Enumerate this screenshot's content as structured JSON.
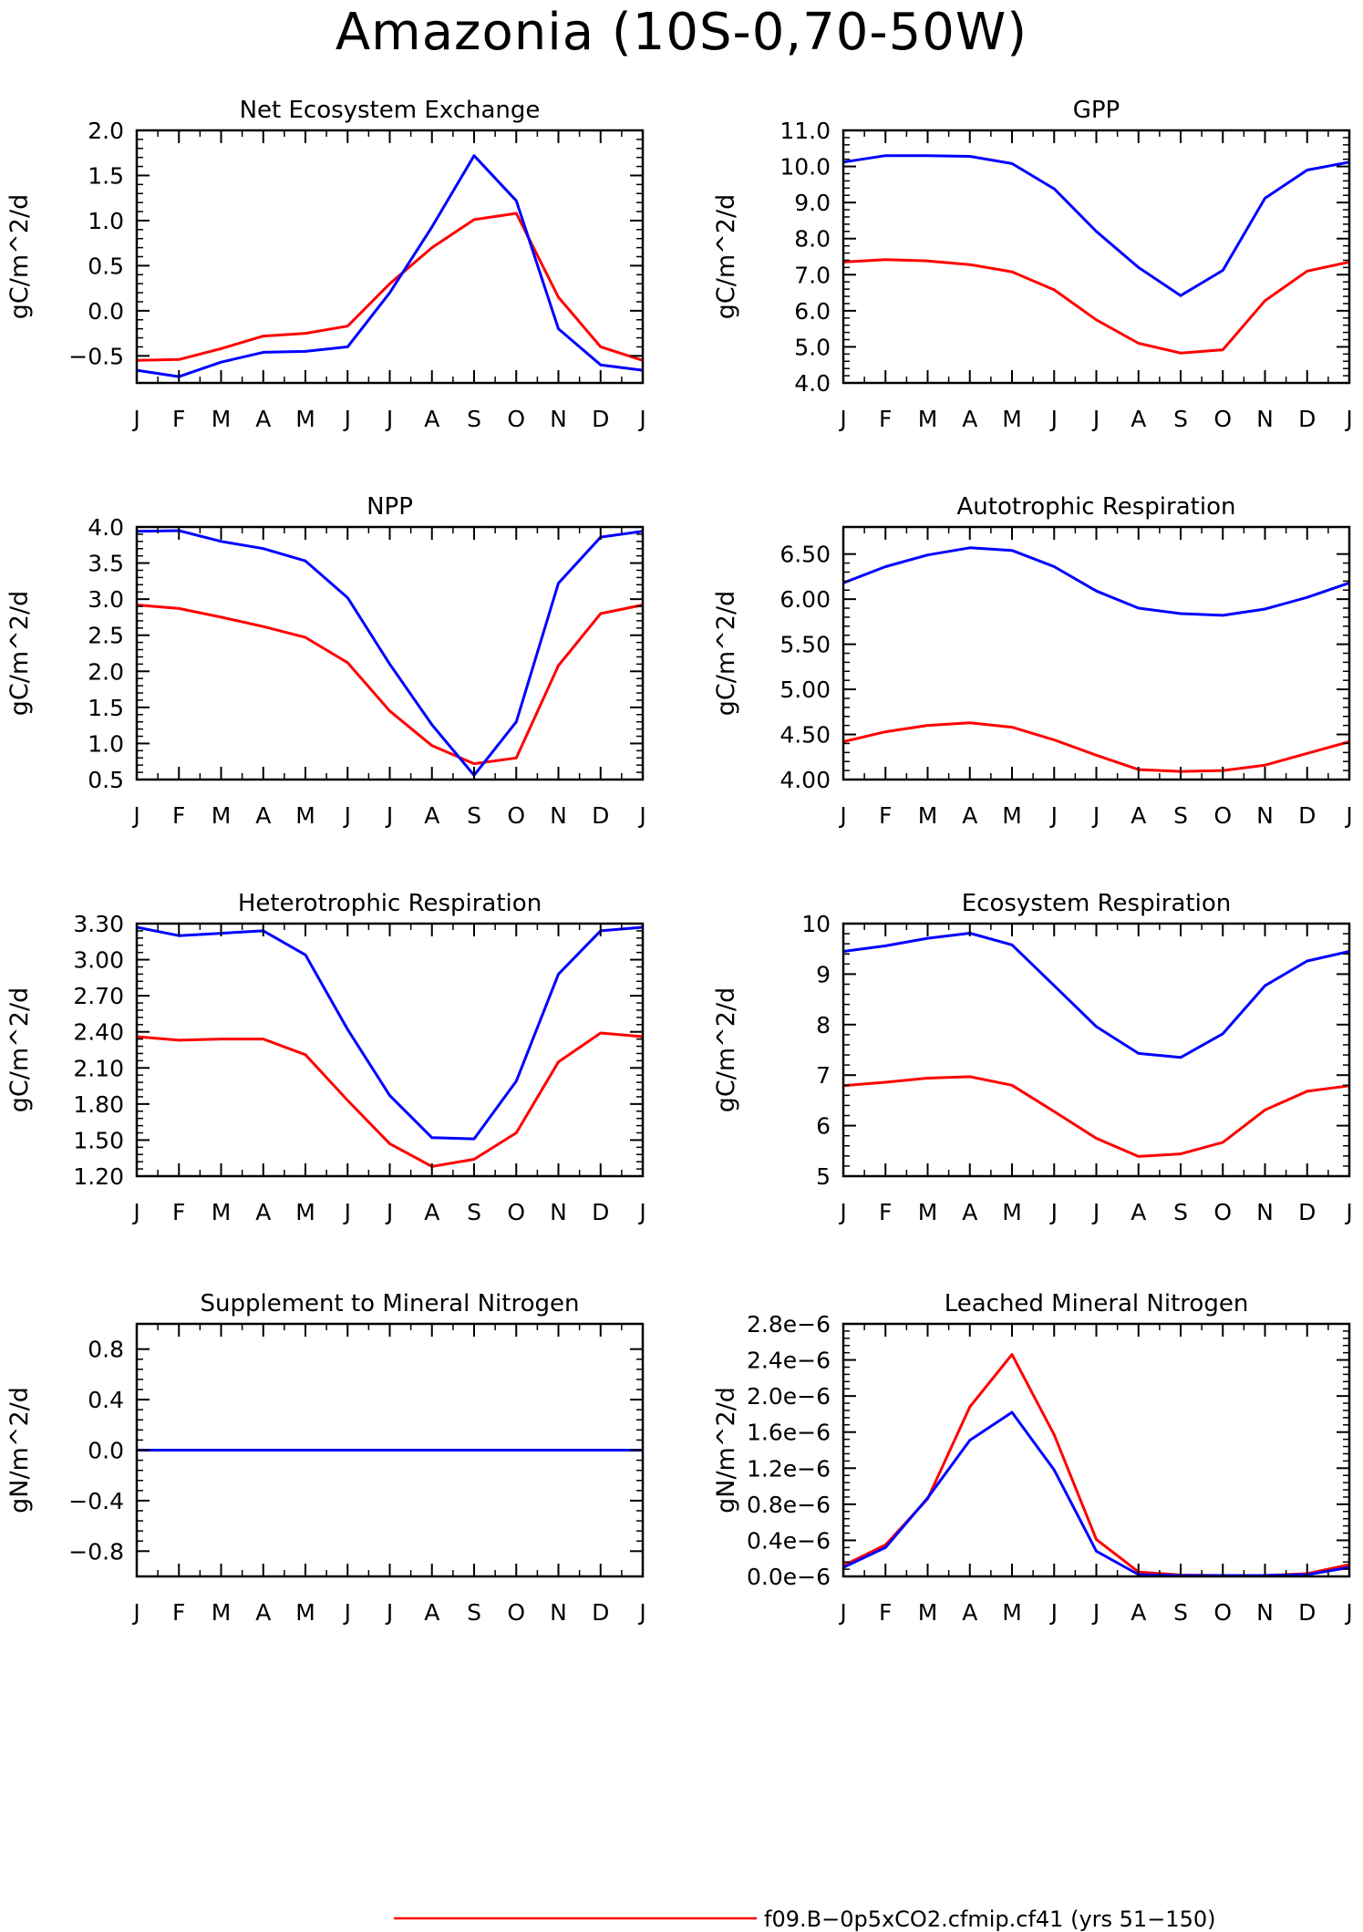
{
  "title": "Amazonia (10S-0,70-50W)",
  "colors": {
    "series_a": "#ff0000",
    "series_b": "#0000ff"
  },
  "legend": {
    "label": "f09.B-0p5xCO2.cfmip.cf41 (yrs 51-150)",
    "color": "#ff0000"
  },
  "chart_data": [
    {
      "type": "line",
      "title": "Net Ecosystem Exchange",
      "ylabel": "gC/m^2/d",
      "x": [
        "J",
        "F",
        "M",
        "A",
        "M",
        "J",
        "J",
        "A",
        "S",
        "O",
        "N",
        "D",
        "J"
      ],
      "ylim": [
        -0.8,
        2.0
      ],
      "yticks": [
        -0.5,
        0.0,
        0.5,
        1.0,
        1.5,
        2.0
      ],
      "ytick_labels": [
        "-0.5",
        "0.0",
        "0.5",
        "1.0",
        "1.5",
        "2.0"
      ],
      "series": [
        {
          "color": "#ff0000",
          "values": [
            -0.55,
            -0.54,
            -0.42,
            -0.28,
            -0.25,
            -0.17,
            0.3,
            0.7,
            1.01,
            1.08,
            0.15,
            -0.4,
            -0.55
          ]
        },
        {
          "color": "#0000ff",
          "values": [
            -0.66,
            -0.73,
            -0.57,
            -0.46,
            -0.45,
            -0.4,
            0.2,
            0.93,
            1.72,
            1.22,
            -0.2,
            -0.6,
            -0.66
          ]
        }
      ]
    },
    {
      "type": "line",
      "title": "GPP",
      "ylabel": "gC/m^2/d",
      "x": [
        "J",
        "F",
        "M",
        "A",
        "M",
        "J",
        "J",
        "A",
        "S",
        "O",
        "N",
        "D",
        "J"
      ],
      "ylim": [
        4.0,
        11.0
      ],
      "yticks": [
        4.0,
        5.0,
        6.0,
        7.0,
        8.0,
        9.0,
        10.0,
        11.0
      ],
      "ytick_labels": [
        "4.0",
        "5.0",
        "6.0",
        "7.0",
        "8.0",
        "9.0",
        "10.0",
        "11.0"
      ],
      "series": [
        {
          "color": "#ff0000",
          "values": [
            7.35,
            7.42,
            7.38,
            7.28,
            7.08,
            6.58,
            5.75,
            5.1,
            4.83,
            4.92,
            6.28,
            7.1,
            7.35
          ]
        },
        {
          "color": "#0000ff",
          "values": [
            10.12,
            10.3,
            10.3,
            10.28,
            10.08,
            9.38,
            8.2,
            7.2,
            6.42,
            7.12,
            9.12,
            9.9,
            10.12
          ]
        }
      ]
    },
    {
      "type": "line",
      "title": "NPP",
      "ylabel": "gC/m^2/d",
      "x": [
        "J",
        "F",
        "M",
        "A",
        "M",
        "J",
        "J",
        "A",
        "S",
        "O",
        "N",
        "D",
        "J"
      ],
      "ylim": [
        0.5,
        4.0
      ],
      "yticks": [
        0.5,
        1.0,
        1.5,
        2.0,
        2.5,
        3.0,
        3.5,
        4.0
      ],
      "ytick_labels": [
        "0.5",
        "1.0",
        "1.5",
        "2.0",
        "2.5",
        "3.0",
        "3.5",
        "4.0"
      ],
      "series": [
        {
          "color": "#ff0000",
          "values": [
            2.92,
            2.87,
            2.75,
            2.62,
            2.47,
            2.12,
            1.45,
            0.97,
            0.72,
            0.8,
            2.08,
            2.8,
            2.92
          ]
        },
        {
          "color": "#0000ff",
          "values": [
            3.94,
            3.95,
            3.8,
            3.7,
            3.53,
            3.02,
            2.1,
            1.26,
            0.56,
            1.3,
            3.22,
            3.86,
            3.94
          ]
        }
      ]
    },
    {
      "type": "line",
      "title": "Autotrophic Respiration",
      "ylabel": "gC/m^2/d",
      "x": [
        "J",
        "F",
        "M",
        "A",
        "M",
        "J",
        "J",
        "A",
        "S",
        "O",
        "N",
        "D",
        "J"
      ],
      "ylim": [
        4.0,
        6.8
      ],
      "yticks": [
        4.0,
        4.5,
        5.0,
        5.5,
        6.0,
        6.5
      ],
      "ytick_labels": [
        "4.00",
        "4.50",
        "5.00",
        "5.50",
        "6.00",
        "6.50"
      ],
      "series": [
        {
          "color": "#ff0000",
          "values": [
            4.42,
            4.53,
            4.6,
            4.63,
            4.58,
            4.44,
            4.27,
            4.11,
            4.09,
            4.1,
            4.16,
            4.29,
            4.42
          ]
        },
        {
          "color": "#0000ff",
          "values": [
            6.18,
            6.36,
            6.49,
            6.57,
            6.54,
            6.36,
            6.09,
            5.9,
            5.84,
            5.82,
            5.89,
            6.02,
            6.18
          ]
        }
      ]
    },
    {
      "type": "line",
      "title": "Heterotrophic Respiration",
      "ylabel": "gC/m^2/d",
      "x": [
        "J",
        "F",
        "M",
        "A",
        "M",
        "J",
        "J",
        "A",
        "S",
        "O",
        "N",
        "D",
        "J"
      ],
      "ylim": [
        1.2,
        3.3
      ],
      "yticks": [
        1.2,
        1.5,
        1.8,
        2.1,
        2.4,
        2.7,
        3.0,
        3.3
      ],
      "ytick_labels": [
        "1.20",
        "1.50",
        "1.80",
        "2.10",
        "2.40",
        "2.70",
        "3.00",
        "3.30"
      ],
      "series": [
        {
          "color": "#ff0000",
          "values": [
            2.36,
            2.33,
            2.34,
            2.34,
            2.21,
            1.83,
            1.47,
            1.28,
            1.34,
            1.56,
            2.15,
            2.39,
            2.36
          ]
        },
        {
          "color": "#0000ff",
          "values": [
            3.27,
            3.2,
            3.22,
            3.24,
            3.04,
            2.42,
            1.87,
            1.52,
            1.51,
            1.99,
            2.88,
            3.24,
            3.27
          ]
        }
      ]
    },
    {
      "type": "line",
      "title": "Ecosystem Respiration",
      "ylabel": "gC/m^2/d",
      "x": [
        "J",
        "F",
        "M",
        "A",
        "M",
        "J",
        "J",
        "A",
        "S",
        "O",
        "N",
        "D",
        "J"
      ],
      "ylim": [
        5,
        10
      ],
      "yticks": [
        5,
        6,
        7,
        8,
        9,
        10
      ],
      "ytick_labels": [
        "5",
        "6",
        "7",
        "8",
        "9",
        "10"
      ],
      "series": [
        {
          "color": "#ff0000",
          "values": [
            6.79,
            6.86,
            6.94,
            6.97,
            6.8,
            6.28,
            5.75,
            5.39,
            5.44,
            5.67,
            6.31,
            6.68,
            6.79
          ]
        },
        {
          "color": "#0000ff",
          "values": [
            9.45,
            9.56,
            9.71,
            9.81,
            9.58,
            8.77,
            7.96,
            7.43,
            7.35,
            7.82,
            8.77,
            9.26,
            9.45
          ]
        }
      ]
    },
    {
      "type": "line",
      "title": "Supplement to Mineral Nitrogen",
      "ylabel": "gN/m^2/d",
      "x": [
        "J",
        "F",
        "M",
        "A",
        "M",
        "J",
        "J",
        "A",
        "S",
        "O",
        "N",
        "D",
        "J"
      ],
      "ylim": [
        -1.0,
        1.0
      ],
      "yticks": [
        -0.8,
        -0.4,
        0.0,
        0.4,
        0.8
      ],
      "ytick_labels": [
        "-0.8",
        "-0.4",
        "0.0",
        "0.4",
        "0.8"
      ],
      "series": [
        {
          "color": "#ff0000",
          "values": [
            0,
            0,
            0,
            0,
            0,
            0,
            0,
            0,
            0,
            0,
            0,
            0,
            0
          ]
        },
        {
          "color": "#0000ff",
          "values": [
            0,
            0,
            0,
            0,
            0,
            0,
            0,
            0,
            0,
            0,
            0,
            0,
            0
          ]
        }
      ]
    },
    {
      "type": "line",
      "title": "Leached Mineral Nitrogen",
      "ylabel": "gN/m^2/d",
      "x": [
        "J",
        "F",
        "M",
        "A",
        "M",
        "J",
        "J",
        "A",
        "S",
        "O",
        "N",
        "D",
        "J"
      ],
      "ylim": [
        0.0,
        2.8e-06
      ],
      "yticks": [
        0,
        4e-07,
        8e-07,
        1.2e-06,
        1.6e-06,
        2e-06,
        2.4e-06,
        2.8e-06
      ],
      "ytick_labels": [
        "0.0e-6",
        "0.4e-6",
        "0.8e-6",
        "1.2e-6",
        "1.6e-6",
        "2.0e-6",
        "2.4e-6",
        "2.8e-6"
      ],
      "series": [
        {
          "color": "#ff0000",
          "values": [
            1.2e-07,
            3.5e-07,
            8.6e-07,
            1.88e-06,
            2.46e-06,
            1.57e-06,
            4.1e-07,
            5e-08,
            1.5e-08,
            1e-08,
            1e-08,
            3e-08,
            1.3e-07
          ]
        },
        {
          "color": "#0000ff",
          "values": [
            1e-07,
            3.2e-07,
            8.7e-07,
            1.51e-06,
            1.82e-06,
            1.18e-06,
            2.8e-07,
            2e-08,
            1e-08,
            1e-08,
            1e-08,
            2e-08,
            1e-07
          ]
        }
      ]
    }
  ]
}
